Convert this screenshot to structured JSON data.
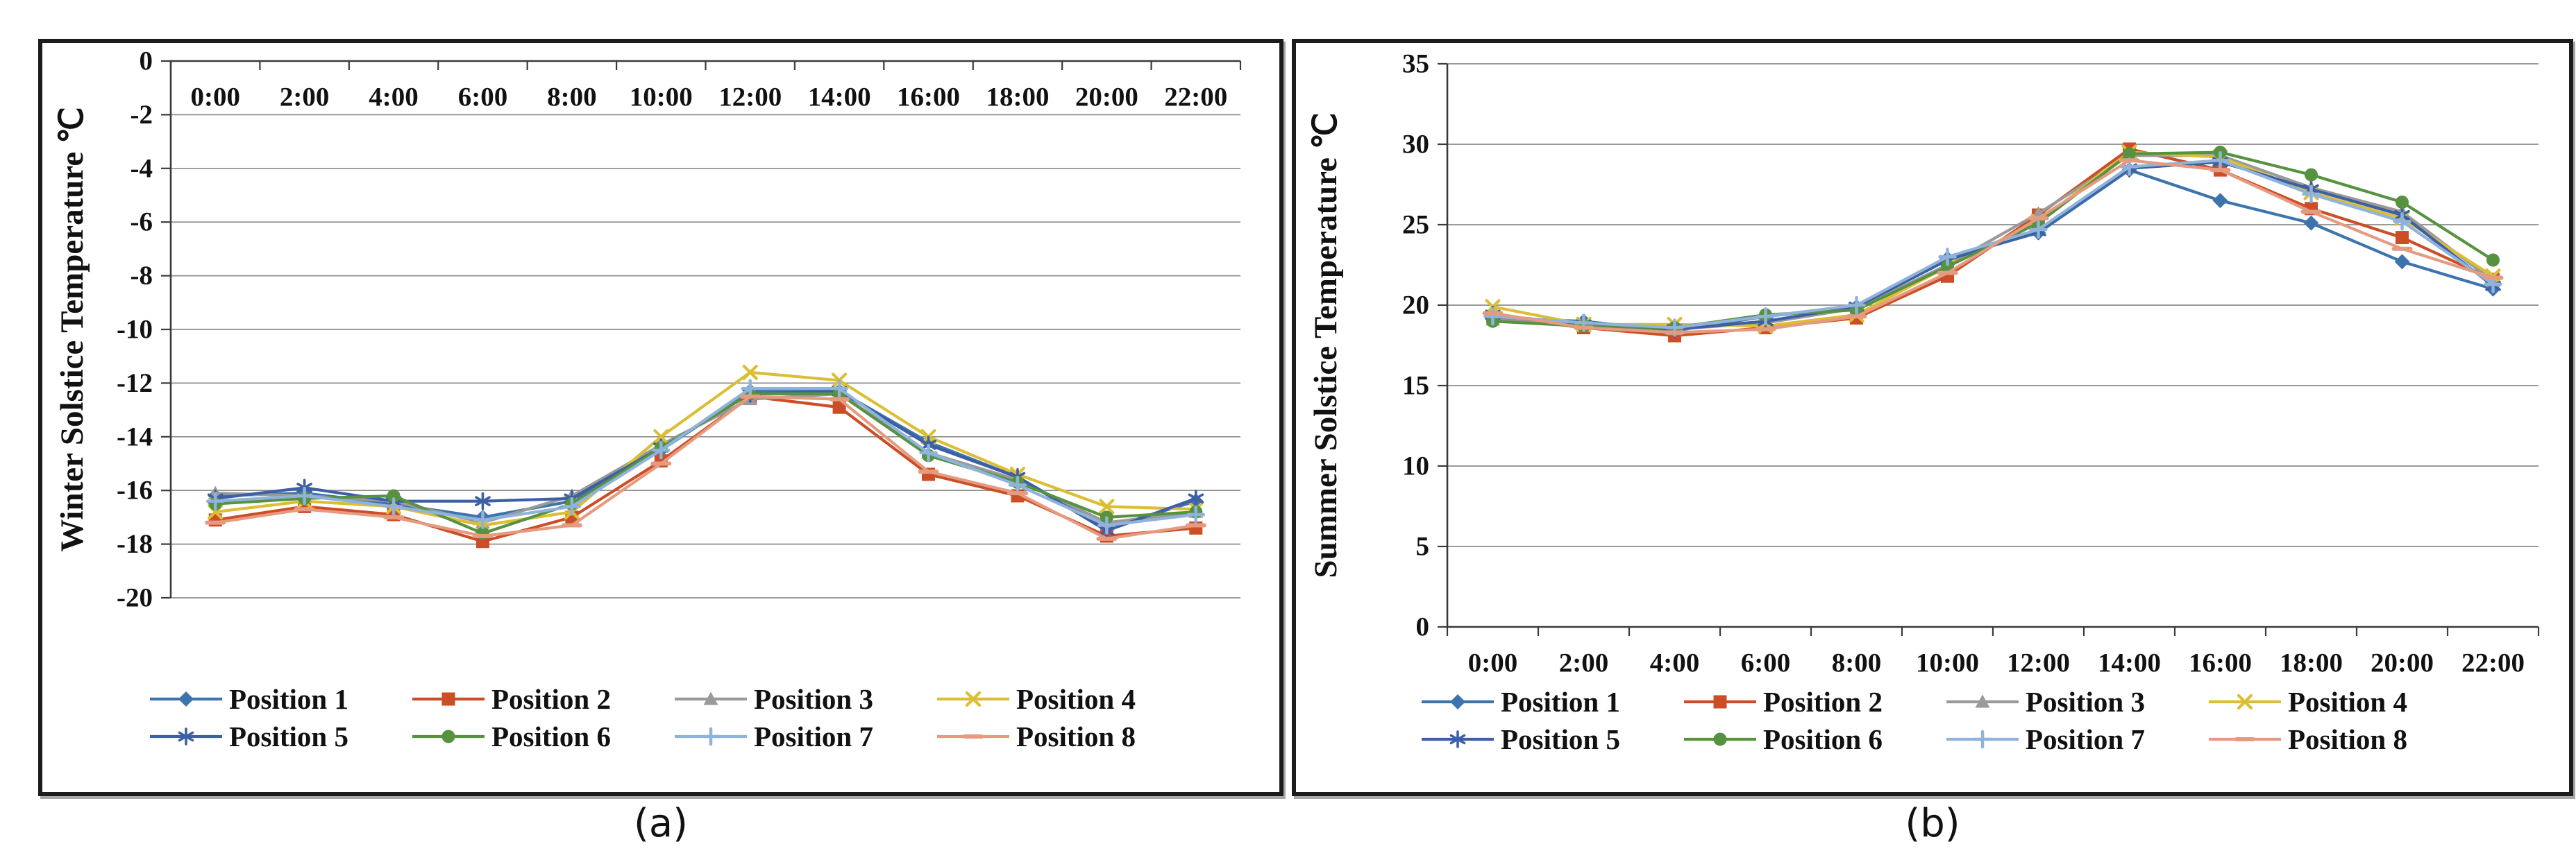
{
  "page": {
    "background": "#ffffff",
    "captions": [
      "(a)",
      "(b)"
    ]
  },
  "chart_data": [
    {
      "id": "winter",
      "type": "line",
      "title": "",
      "axis_title": "Winter Solstice Temperature ℃",
      "caption": "(a)",
      "xlabel": "",
      "ylabel": "Winter Solstice Temperature ℃",
      "categories": [
        "0:00",
        "2:00",
        "4:00",
        "6:00",
        "8:00",
        "10:00",
        "12:00",
        "14:00",
        "16:00",
        "18:00",
        "20:00",
        "22:00"
      ],
      "ylim": [
        -20,
        0
      ],
      "yticks": [
        0,
        -2,
        -4,
        -6,
        -8,
        -10,
        -12,
        -14,
        -16,
        -18,
        -20
      ],
      "grid": true,
      "x_axis_at": "top",
      "legend_position": "bottom",
      "series": [
        {
          "name": "Position 1",
          "color": "#3E74AE",
          "marker": "diamond",
          "values": [
            -16.2,
            -16.1,
            -16.5,
            -17.0,
            -16.4,
            -14.5,
            -12.3,
            -12.3,
            -14.2,
            -15.5,
            -17.4,
            -16.4
          ]
        },
        {
          "name": "Position 2",
          "color": "#CC4E27",
          "marker": "square",
          "values": [
            -17.1,
            -16.6,
            -16.9,
            -17.9,
            -17.0,
            -14.9,
            -12.5,
            -12.9,
            -15.4,
            -16.2,
            -17.7,
            -17.4
          ]
        },
        {
          "name": "Position 3",
          "color": "#9A9A9A",
          "marker": "triangle",
          "values": [
            -16.1,
            -16.2,
            -16.4,
            -17.2,
            -16.2,
            -14.3,
            -12.6,
            -12.4,
            -14.6,
            -15.6,
            -17.2,
            -16.8
          ]
        },
        {
          "name": "Position 4",
          "color": "#DCBE34",
          "marker": "x",
          "values": [
            -16.8,
            -16.4,
            -16.6,
            -17.3,
            -16.8,
            -14.0,
            -11.6,
            -11.9,
            -14.0,
            -15.4,
            -16.6,
            -16.7
          ]
        },
        {
          "name": "Position 5",
          "color": "#3C5FA5",
          "marker": "star",
          "values": [
            -16.3,
            -15.9,
            -16.4,
            -16.4,
            -16.3,
            -14.4,
            -12.4,
            -12.3,
            -14.3,
            -15.5,
            -17.5,
            -16.3
          ]
        },
        {
          "name": "Position 6",
          "color": "#579241",
          "marker": "circle",
          "values": [
            -16.5,
            -16.3,
            -16.2,
            -17.6,
            -16.5,
            -14.4,
            -12.4,
            -12.4,
            -14.7,
            -15.7,
            -17.0,
            -16.8
          ]
        },
        {
          "name": "Position 7",
          "color": "#8FB3DA",
          "marker": "plus",
          "values": [
            -16.4,
            -16.2,
            -16.6,
            -17.1,
            -16.6,
            -14.5,
            -12.2,
            -12.2,
            -14.6,
            -15.8,
            -17.3,
            -16.9
          ]
        },
        {
          "name": "Position 8",
          "color": "#E59B80",
          "marker": "dash",
          "values": [
            -17.2,
            -16.7,
            -17.0,
            -17.7,
            -17.3,
            -15.0,
            -12.5,
            -12.6,
            -15.3,
            -16.1,
            -17.8,
            -17.3
          ]
        }
      ]
    },
    {
      "id": "summer",
      "type": "line",
      "title": "",
      "axis_title": "Summer Solstice Temperature ℃",
      "caption": "(b)",
      "xlabel": "",
      "ylabel": "Summer Solstice Temperature ℃",
      "categories": [
        "0:00",
        "2:00",
        "4:00",
        "6:00",
        "8:00",
        "10:00",
        "12:00",
        "14:00",
        "16:00",
        "18:00",
        "20:00",
        "22:00"
      ],
      "ylim": [
        0,
        35
      ],
      "yticks": [
        35,
        30,
        25,
        20,
        15,
        10,
        5,
        0
      ],
      "grid": true,
      "x_axis_at": "bottom",
      "legend_position": "bottom",
      "series": [
        {
          "name": "Position 1",
          "color": "#3E74AE",
          "marker": "diamond",
          "values": [
            19.2,
            19.0,
            18.4,
            19.3,
            19.9,
            22.9,
            24.5,
            28.4,
            26.5,
            25.1,
            22.7,
            21.0
          ]
        },
        {
          "name": "Position 2",
          "color": "#CC4E27",
          "marker": "square",
          "values": [
            19.3,
            18.6,
            18.1,
            18.6,
            19.2,
            21.8,
            25.6,
            29.7,
            28.4,
            26.0,
            24.2,
            21.6
          ]
        },
        {
          "name": "Position 3",
          "color": "#9A9A9A",
          "marker": "triangle",
          "values": [
            19.1,
            18.7,
            18.5,
            18.9,
            19.8,
            22.5,
            25.7,
            29.3,
            29.3,
            27.3,
            25.8,
            21.5
          ]
        },
        {
          "name": "Position 4",
          "color": "#DCBE34",
          "marker": "x",
          "values": [
            19.9,
            18.8,
            18.8,
            18.7,
            19.4,
            22.4,
            25.2,
            29.5,
            29.2,
            27.0,
            25.4,
            21.8
          ]
        },
        {
          "name": "Position 5",
          "color": "#3C5FA5",
          "marker": "star",
          "values": [
            19.4,
            18.8,
            18.5,
            19.0,
            19.9,
            22.8,
            24.6,
            28.5,
            28.9,
            27.2,
            25.6,
            21.2
          ]
        },
        {
          "name": "Position 6",
          "color": "#579241",
          "marker": "circle",
          "values": [
            19.0,
            18.7,
            18.6,
            19.4,
            19.7,
            22.4,
            25.1,
            29.4,
            29.5,
            28.1,
            26.4,
            22.8
          ]
        },
        {
          "name": "Position 7",
          "color": "#8FB3DA",
          "marker": "plus",
          "values": [
            19.3,
            18.9,
            18.6,
            19.3,
            20.0,
            23.0,
            24.7,
            28.6,
            29.0,
            26.9,
            25.2,
            21.3
          ]
        },
        {
          "name": "Position 8",
          "color": "#E59B80",
          "marker": "dash",
          "values": [
            19.5,
            18.6,
            18.3,
            18.5,
            19.3,
            22.0,
            25.4,
            29.0,
            28.4,
            25.8,
            23.5,
            21.7
          ]
        }
      ]
    }
  ],
  "style": {
    "gridline_color": "#8C8C8C",
    "axis_color": "#3A3A3A",
    "text_color": "#111111"
  }
}
